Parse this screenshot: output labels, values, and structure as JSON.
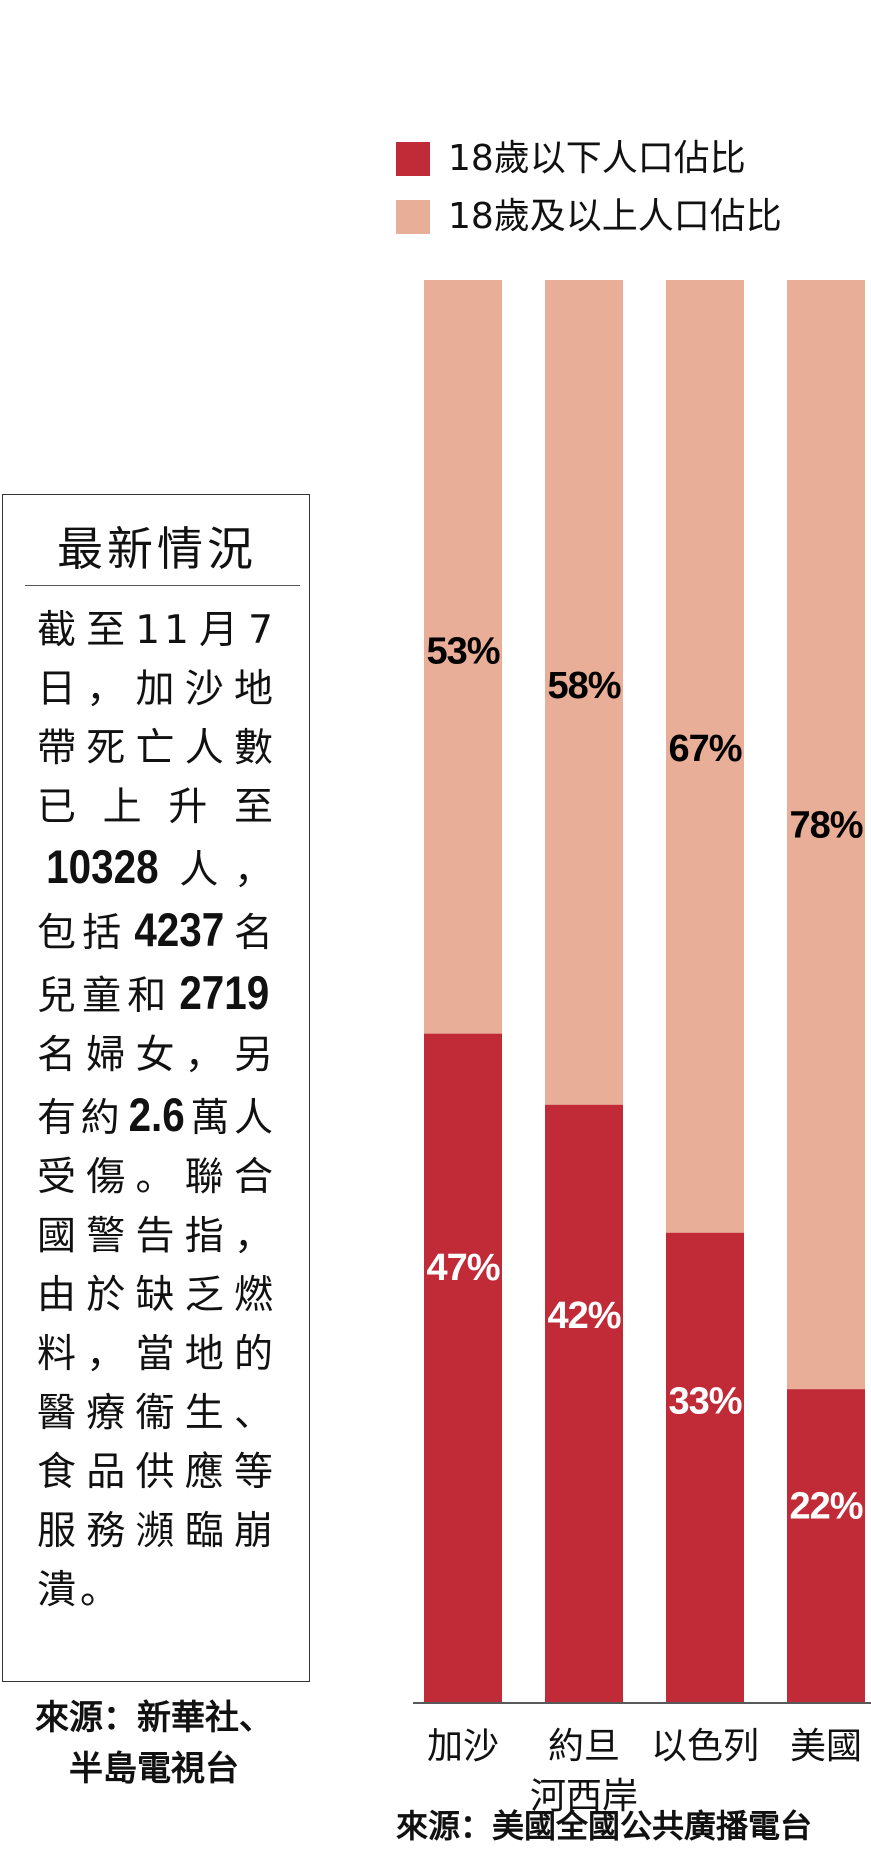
{
  "info": {
    "title": "最新情況",
    "lines": [
      [
        {
          "t": "截至11月7"
        }
      ],
      [
        {
          "t": "日，加沙地"
        }
      ],
      [
        {
          "t": "帶死亡人數"
        }
      ],
      [
        {
          "t": "已上升至"
        }
      ],
      [
        {
          "t": "10328",
          "num": true
        },
        {
          "t": "人，"
        }
      ],
      [
        {
          "t": "包括"
        },
        {
          "t": "4237",
          "num": true
        },
        {
          "t": "名"
        }
      ],
      [
        {
          "t": "兒童和"
        },
        {
          "t": "2719",
          "num": true
        }
      ],
      [
        {
          "t": "名婦女，另"
        }
      ],
      [
        {
          "t": "有約"
        },
        {
          "t": "2.6",
          "num": true
        },
        {
          "t": "萬人"
        }
      ],
      [
        {
          "t": "受傷。聯合"
        }
      ],
      [
        {
          "t": "國警告指，"
        }
      ],
      [
        {
          "t": "由於缺乏燃"
        }
      ],
      [
        {
          "t": "料，當地的"
        }
      ],
      [
        {
          "t": "醫療衞生、"
        }
      ],
      [
        {
          "t": "食品供應等"
        }
      ],
      [
        {
          "t": "服務瀕臨崩"
        }
      ],
      [
        {
          "t": "潰。",
          "last": true
        }
      ]
    ],
    "source_line1": "來源：新華社、",
    "source_line2": "半島電視台"
  },
  "legend": {
    "under18": "18歲以下人口佔比",
    "adult": "18歲及以上人口佔比"
  },
  "colors": {
    "under18": "#c12a37",
    "adult": "#e8ae98",
    "label_on_under18": "#ffffff",
    "label_on_adult": "#000000"
  },
  "chart_source": "來源：美國全國公共廣播電台",
  "chart_data": {
    "type": "bar",
    "stacked": true,
    "categories": [
      [
        "加沙"
      ],
      [
        "約旦",
        "河西岸"
      ],
      [
        "以色列"
      ],
      [
        "美國"
      ]
    ],
    "series": [
      {
        "name": "18歲以下人口佔比",
        "values": [
          47,
          42,
          33,
          22
        ],
        "labels": [
          "47%",
          "42%",
          "33%",
          "22%"
        ]
      },
      {
        "name": "18歲及以上人口佔比",
        "values": [
          53,
          58,
          67,
          78
        ],
        "labels": [
          "53%",
          "58%",
          "67%",
          "78%"
        ]
      }
    ],
    "ylim": [
      0,
      100
    ],
    "grid": false
  }
}
